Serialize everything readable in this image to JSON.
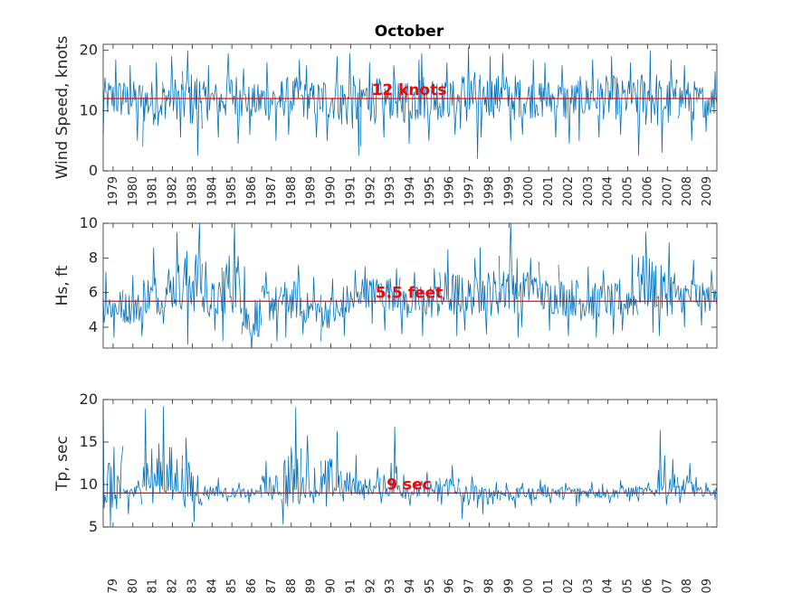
{
  "figure": {
    "title": "October"
  },
  "colors": {
    "series": "#0072bd",
    "reference": "#ff0000",
    "axes": "#262626"
  },
  "years": [
    "1979",
    "1980",
    "1981",
    "1982",
    "1983",
    "1984",
    "1985",
    "1986",
    "1987",
    "1988",
    "1989",
    "1990",
    "1991",
    "1992",
    "1993",
    "1994",
    "1995",
    "1996",
    "1997",
    "1998",
    "1999",
    "2000",
    "2001",
    "2002",
    "2003",
    "2004",
    "2005",
    "2006",
    "2007",
    "2008",
    "2009"
  ],
  "bottom_tick_labels": [
    "79",
    "80",
    "81",
    "82",
    "83",
    "84",
    "85",
    "86",
    "87",
    "88",
    "89",
    "90",
    "91",
    "92",
    "93",
    "94",
    "95",
    "96",
    "97",
    "98",
    "99",
    "00",
    "01",
    "02",
    "03",
    "04",
    "05",
    "06",
    "07",
    "08",
    "09"
  ],
  "chart_data": [
    {
      "type": "line",
      "title": "October",
      "xlabel": "",
      "ylabel": "Wind Speed, knots",
      "x_categories": [
        "1979",
        "1980",
        "1981",
        "1982",
        "1983",
        "1984",
        "1985",
        "1986",
        "1987",
        "1988",
        "1989",
        "1990",
        "1991",
        "1992",
        "1993",
        "1994",
        "1995",
        "1996",
        "1997",
        "1998",
        "1999",
        "2000",
        "2001",
        "2002",
        "2003",
        "2004",
        "2005",
        "2006",
        "2007",
        "2008",
        "2009"
      ],
      "ylim": [
        0,
        21
      ],
      "yticks": [
        0,
        10,
        20
      ],
      "series_yearly_mean": [
        11.8,
        12.0,
        11.6,
        12.1,
        12.3,
        11.7,
        12.6,
        11.4,
        11.9,
        12.2,
        11.8,
        12.1,
        11.5,
        12.4,
        11.9,
        12.0,
        12.3,
        11.7,
        12.2,
        12.5,
        12.1,
        11.9,
        12.0,
        11.8,
        12.3,
        12.0,
        11.9,
        12.4,
        11.7,
        12.1,
        11.8
      ],
      "series_yearly_max": [
        18.5,
        17.5,
        18.0,
        19.0,
        20.0,
        17.5,
        19.5,
        17.0,
        18.0,
        18.5,
        17.5,
        19.0,
        19.5,
        18.0,
        17.5,
        18.5,
        19.5,
        18.0,
        20.5,
        19.0,
        19.5,
        18.5,
        18.0,
        17.5,
        18.5,
        19.0,
        18.0,
        20.0,
        18.5,
        17.5,
        16.5
      ],
      "series_yearly_min": [
        6.0,
        5.0,
        4.0,
        5.5,
        2.5,
        5.5,
        4.5,
        6.0,
        5.0,
        6.0,
        5.5,
        5.0,
        2.5,
        4.0,
        5.5,
        4.5,
        5.0,
        6.0,
        2.0,
        5.5,
        5.0,
        6.0,
        5.5,
        4.5,
        5.0,
        5.5,
        6.0,
        2.5,
        3.0,
        5.0,
        6.5
      ],
      "reference_line": {
        "value": 12,
        "label": "12 knots"
      }
    },
    {
      "type": "line",
      "title": "",
      "xlabel": "",
      "ylabel": "Hs, ft",
      "x_categories": [
        "1979",
        "1980",
        "1981",
        "1982",
        "1983",
        "1984",
        "1985",
        "1986",
        "1987",
        "1988",
        "1989",
        "1990",
        "1991",
        "1992",
        "1993",
        "1994",
        "1995",
        "1996",
        "1997",
        "1998",
        "1999",
        "2000",
        "2001",
        "2002",
        "2003",
        "2004",
        "2005",
        "2006",
        "2007",
        "2008",
        "2009"
      ],
      "ylim": [
        2.8,
        10
      ],
      "yticks": [
        4,
        6,
        8,
        10
      ],
      "series_yearly_mean": [
        5.2,
        5.0,
        5.6,
        6.0,
        6.8,
        5.4,
        6.5,
        4.2,
        5.5,
        5.6,
        5.0,
        4.8,
        5.5,
        6.2,
        6.3,
        5.4,
        5.6,
        5.8,
        5.7,
        5.9,
        6.5,
        6.4,
        5.8,
        5.9,
        5.5,
        5.6,
        5.4,
        6.5,
        6.0,
        5.8,
        5.7
      ],
      "series_yearly_max": [
        7.2,
        7.0,
        8.6,
        9.5,
        10.0,
        7.8,
        10.0,
        7.5,
        7.2,
        7.6,
        6.9,
        6.8,
        7.3,
        7.5,
        7.4,
        7.2,
        7.4,
        8.5,
        8.0,
        8.6,
        10.0,
        8.0,
        7.8,
        7.6,
        7.5,
        7.3,
        8.2,
        9.5,
        8.9,
        7.9,
        7.3
      ],
      "series_yearly_min": [
        3.4,
        3.5,
        4.0,
        4.2,
        3.0,
        3.8,
        3.2,
        2.8,
        3.2,
        3.4,
        3.6,
        3.2,
        3.5,
        4.2,
        3.8,
        3.6,
        3.5,
        3.5,
        3.8,
        3.6,
        3.4,
        4.0,
        3.8,
        3.5,
        3.4,
        3.6,
        3.8,
        3.7,
        3.5,
        4.0,
        4.1
      ],
      "reference_line": {
        "value": 5.5,
        "label": "5.5 feet"
      }
    },
    {
      "type": "line",
      "title": "",
      "xlabel": "",
      "ylabel": "Tp, sec",
      "x_categories": [
        "1979",
        "1980",
        "1981",
        "1982",
        "1983",
        "1984",
        "1985",
        "1986",
        "1987",
        "1988",
        "1989",
        "1990",
        "1991",
        "1992",
        "1993",
        "1994",
        "1995",
        "1996",
        "1997",
        "1998",
        "1999",
        "2000",
        "2001",
        "2002",
        "2003",
        "2004",
        "2005",
        "2006",
        "2007",
        "2008",
        "2009"
      ],
      "ylim": [
        5,
        20
      ],
      "yticks": [
        5,
        10,
        15,
        20
      ],
      "series_yearly_mean": [
        9.0,
        9.2,
        10.2,
        9.6,
        9.4,
        9.1,
        9.0,
        9.0,
        9.2,
        9.5,
        9.3,
        9.6,
        9.5,
        9.4,
        9.4,
        9.2,
        9.3,
        9.8,
        8.8,
        9.0,
        8.9,
        9.0,
        9.2,
        9.2,
        9.1,
        9.0,
        9.1,
        9.2,
        9.9,
        9.4,
        9.1
      ],
      "series_yearly_max": [
        19.2,
        10.5,
        18.9,
        19.2,
        15.5,
        10.8,
        10.2,
        10.0,
        12.8,
        19.1,
        15.8,
        16.3,
        13.5,
        12.0,
        16.8,
        11.2,
        11.5,
        12.3,
        11.0,
        10.3,
        10.2,
        10.2,
        10.6,
        10.2,
        10.3,
        10.1,
        10.5,
        10.2,
        16.4,
        12.5,
        10.2
      ],
      "series_yearly_min": [
        5.0,
        6.5,
        7.8,
        8.2,
        5.6,
        8.2,
        8.0,
        7.8,
        8.2,
        5.3,
        7.8,
        7.4,
        8.0,
        8.2,
        7.8,
        7.5,
        8.0,
        7.6,
        5.9,
        6.5,
        7.2,
        7.5,
        7.8,
        7.4,
        7.8,
        7.8,
        8.0,
        8.0,
        7.6,
        7.8,
        8.2
      ],
      "reference_line": {
        "value": 9,
        "label": "9 sec"
      }
    }
  ]
}
